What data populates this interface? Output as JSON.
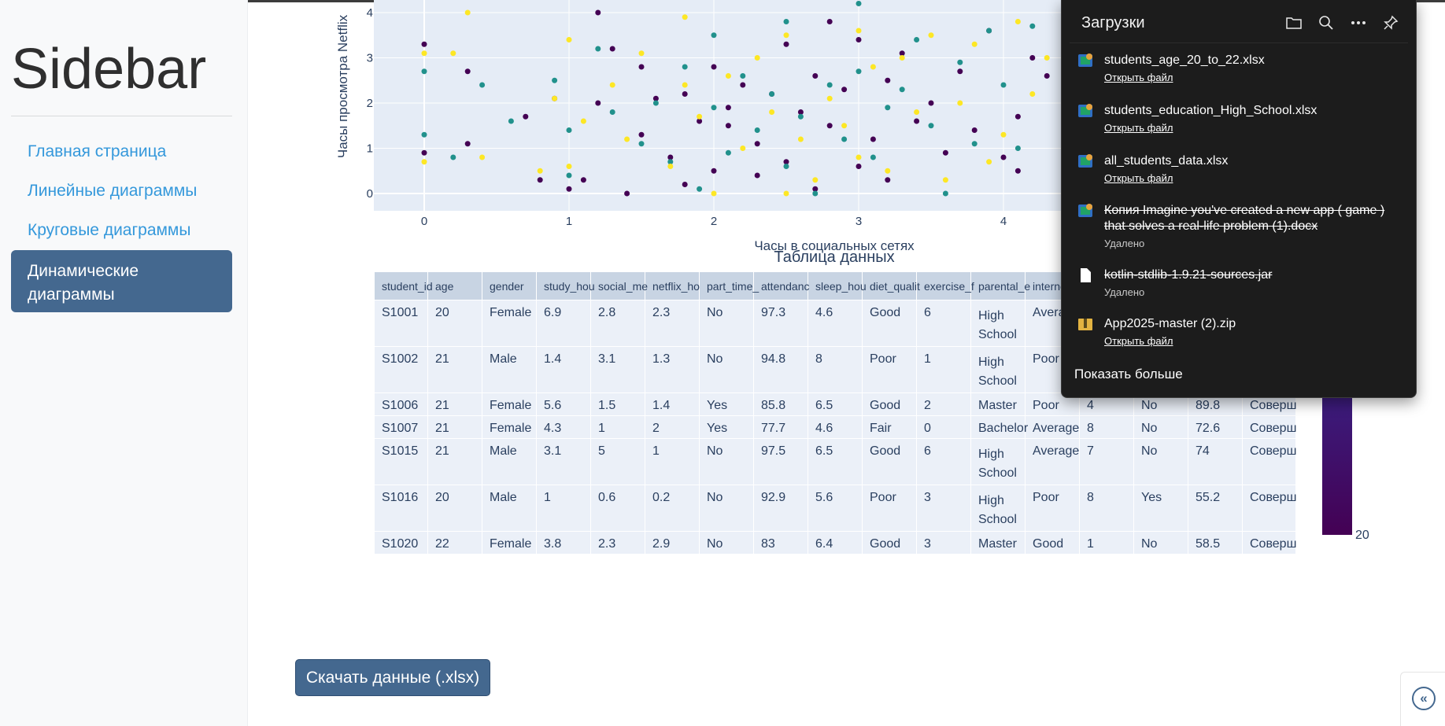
{
  "sidebar": {
    "title": "Sidebar",
    "items": [
      {
        "label": "Главная страница"
      },
      {
        "label": "Линейные диаграммы"
      },
      {
        "label": "Круговые диаграммы"
      },
      {
        "label": "Динамические диаграммы"
      }
    ]
  },
  "chart_data": {
    "type": "scatter",
    "xlabel": "Часы в социальных сетях",
    "ylabel": "Часы просмотра Netflix",
    "x_ticks": [
      "0",
      "1",
      "2",
      "3",
      "4"
    ],
    "y_ticks": [
      "0",
      "1",
      "2",
      "3",
      "4"
    ],
    "xlim": [
      -0.35,
      4.65
    ],
    "ylim": [
      -0.4,
      4.2
    ],
    "grid": true,
    "background": "#e5ecf6",
    "colors": [
      "#440154",
      "#21918c",
      "#fde725"
    ],
    "series": [
      {
        "x": [
          0,
          0,
          0.3,
          0.3,
          0.7,
          0.8,
          0.9,
          1.0,
          1.1,
          1.2,
          1.2,
          1.3,
          1.4,
          1.5,
          1.5,
          1.6,
          1.7,
          1.8,
          1.8,
          1.9,
          2.0,
          2.0,
          2.1,
          2.1,
          2.2,
          2.3,
          2.3,
          2.4,
          2.5,
          2.5,
          2.6,
          2.7,
          2.7,
          2.8,
          2.8,
          2.9,
          3.0,
          3.0,
          3.1,
          3.2,
          3.2,
          3.3,
          3.4,
          3.5,
          3.6,
          3.7,
          3.8,
          3.9,
          4.0,
          4.1,
          4.1,
          4.2,
          4.3
        ],
        "y": [
          3.3,
          0.9,
          2.7,
          1.1,
          1.7,
          0.3,
          2.1,
          0.1,
          0.3,
          2.0,
          4.0,
          3.2,
          0.0,
          2.8,
          1.3,
          2.1,
          0.8,
          0.2,
          2.2,
          1.6,
          2.8,
          0.5,
          1.5,
          1.9,
          2.4,
          1.1,
          0.4,
          2.2,
          0.7,
          3.3,
          1.8,
          0.1,
          2.6,
          1.5,
          3.8,
          2.3,
          0.6,
          3.4,
          1.2,
          2.5,
          0.3,
          3.1,
          1.6,
          2.0,
          0.9,
          2.7,
          1.4,
          3.6,
          0.8,
          0.5,
          1.7,
          3.0,
          2.6
        ],
        "color": "#440154"
      },
      {
        "x": [
          0,
          0,
          0.2,
          0.4,
          0.6,
          0.9,
          1.0,
          1.0,
          1.2,
          1.3,
          1.5,
          1.6,
          1.7,
          1.8,
          1.9,
          2.0,
          2.0,
          2.1,
          2.2,
          2.3,
          2.4,
          2.5,
          2.5,
          2.6,
          2.7,
          2.8,
          2.9,
          3.0,
          3.0,
          3.1,
          3.2,
          3.3,
          3.4,
          3.5,
          3.6,
          3.7,
          3.8,
          3.9,
          4.0,
          4.1,
          4.2
        ],
        "y": [
          1.3,
          2.7,
          0.8,
          2.4,
          1.6,
          2.5,
          0.4,
          1.4,
          3.2,
          1.8,
          1.1,
          2.0,
          0.7,
          2.8,
          0.1,
          1.9,
          3.5,
          0.9,
          2.6,
          1.4,
          2.2,
          0.6,
          3.8,
          1.7,
          0.0,
          2.4,
          1.2,
          2.7,
          4.2,
          0.8,
          1.9,
          2.3,
          3.4,
          1.5,
          0.0,
          2.9,
          1.1,
          3.6,
          2.4,
          1.0,
          3.7
        ],
        "color": "#21918c"
      },
      {
        "x": [
          0,
          0,
          0.2,
          0.3,
          0.4,
          0.8,
          0.9,
          1.0,
          1.0,
          1.1,
          1.3,
          1.4,
          1.5,
          1.7,
          1.8,
          1.8,
          1.9,
          2.0,
          2.1,
          2.2,
          2.3,
          2.4,
          2.5,
          2.5,
          2.6,
          2.7,
          2.8,
          2.9,
          3.0,
          3.0,
          3.1,
          3.2,
          3.3,
          3.4,
          3.5,
          3.6,
          3.7,
          3.8,
          3.9,
          4.0,
          4.1,
          4.2,
          4.3
        ],
        "y": [
          3.1,
          0.7,
          3.1,
          4.0,
          0.8,
          0.5,
          2.1,
          3.4,
          0.6,
          1.6,
          2.4,
          1.2,
          3.1,
          0.6,
          2.4,
          3.9,
          1.7,
          0.0,
          2.6,
          1.0,
          3.0,
          1.8,
          0.0,
          3.5,
          1.2,
          0.3,
          2.1,
          1.5,
          0.8,
          3.6,
          2.8,
          0.5,
          3.0,
          1.8,
          3.5,
          0.3,
          2.0,
          3.3,
          0.7,
          1.3,
          3.8,
          2.2,
          3.0
        ],
        "color": "#fde725"
      }
    ]
  },
  "table": {
    "title": "Таблица данных",
    "headers": [
      "student_id",
      "age",
      "gender",
      "study_hou",
      "social_me",
      "netflix_ho",
      "part_time_",
      "attendanc",
      "sleep_hou",
      "diet_qualit",
      "exercise_f",
      "parental_e",
      "interne",
      "",
      "",
      "",
      ""
    ],
    "rows": [
      [
        "S1001",
        "20",
        "Female",
        "6.9",
        "2.8",
        "2.3",
        "No",
        "97.3",
        "4.6",
        "Good",
        "6",
        "High School",
        "Avera",
        "",
        "",
        "",
        ""
      ],
      [
        "S1002",
        "21",
        "Male",
        "1.4",
        "3.1",
        "1.3",
        "No",
        "94.8",
        "8",
        "Poor",
        "1",
        "High School",
        "Poor",
        "",
        "",
        "",
        ""
      ],
      [
        "S1006",
        "21",
        "Female",
        "5.6",
        "1.5",
        "1.4",
        "Yes",
        "85.8",
        "6.5",
        "Good",
        "2",
        "Master",
        "Poor",
        "4",
        "No",
        "89.8",
        "Соверш"
      ],
      [
        "S1007",
        "21",
        "Female",
        "4.3",
        "1",
        "2",
        "Yes",
        "77.7",
        "4.6",
        "Fair",
        "0",
        "Bachelor",
        "Average",
        "8",
        "No",
        "72.6",
        "Соверш"
      ],
      [
        "S1015",
        "21",
        "Male",
        "3.1",
        "5",
        "1",
        "No",
        "97.5",
        "6.5",
        "Good",
        "6",
        "High School",
        "Average",
        "7",
        "No",
        "74",
        "Соверш"
      ],
      [
        "S1016",
        "20",
        "Male",
        "1",
        "0.6",
        "0.2",
        "No",
        "92.9",
        "5.6",
        "Poor",
        "3",
        "High School",
        "Poor",
        "8",
        "Yes",
        "55.2",
        "Соверш"
      ],
      [
        "S1020",
        "22",
        "Female",
        "3.8",
        "2.3",
        "2.9",
        "No",
        "83",
        "6.4",
        "Good",
        "3",
        "Master",
        "Good",
        "1",
        "No",
        "58.5",
        "Соверш"
      ]
    ]
  },
  "colorbar": {
    "label": "20"
  },
  "download_button": {
    "label": "Скачать данные (.xlsx)"
  },
  "collapse_button": {
    "icon": "«"
  },
  "downloads_panel": {
    "title": "Загрузки",
    "actions": [
      "folder-icon",
      "search-icon",
      "more-icon",
      "pin-icon"
    ],
    "items": [
      {
        "name": "students_age_20_to_22.xlsx",
        "link": "Открыть файл",
        "removed": false
      },
      {
        "name": "students_education_High_School.xlsx",
        "link": "Открыть файл",
        "removed": false
      },
      {
        "name": "all_students_data.xlsx",
        "link": "Открыть файл",
        "removed": false
      },
      {
        "name": "Копия Imagine you've created a new app ( game ) that solves a real-life problem (1).docx",
        "status": "Удалено",
        "removed": true
      },
      {
        "name": "kotlin-stdlib-1.9.21-sources.jar",
        "status": "Удалено",
        "removed": true
      },
      {
        "name": "App2025-master (2).zip",
        "link": "Открыть файл",
        "removed": false
      }
    ],
    "show_more": "Показать больше"
  }
}
